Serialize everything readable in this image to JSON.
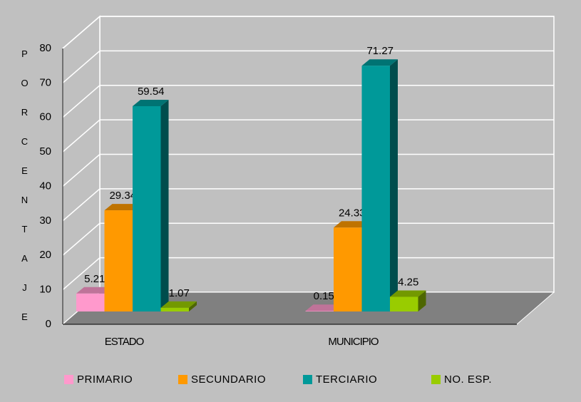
{
  "chart_data": {
    "type": "bar3d",
    "y_label": "PORCENTAJE",
    "categories": [
      "ESTADO",
      "MUNICIPIO"
    ],
    "series": [
      {
        "name": "PRIMARIO",
        "color": "#ff99cc",
        "values": [
          5.21,
          0.15
        ]
      },
      {
        "name": "SECUNDARIO",
        "color": "#ff9900",
        "values": [
          29.34,
          24.33
        ]
      },
      {
        "name": "TERCIARIO",
        "color": "#009999",
        "values": [
          59.54,
          71.27
        ]
      },
      {
        "name": "NO. ESP.",
        "color": "#99cc00",
        "values": [
          1.07,
          4.25
        ]
      }
    ],
    "ylim": [
      0,
      80
    ],
    "yticks": [
      0,
      10,
      20,
      30,
      40,
      50,
      60,
      70,
      80
    ],
    "grid": true,
    "legend": "bottom"
  }
}
